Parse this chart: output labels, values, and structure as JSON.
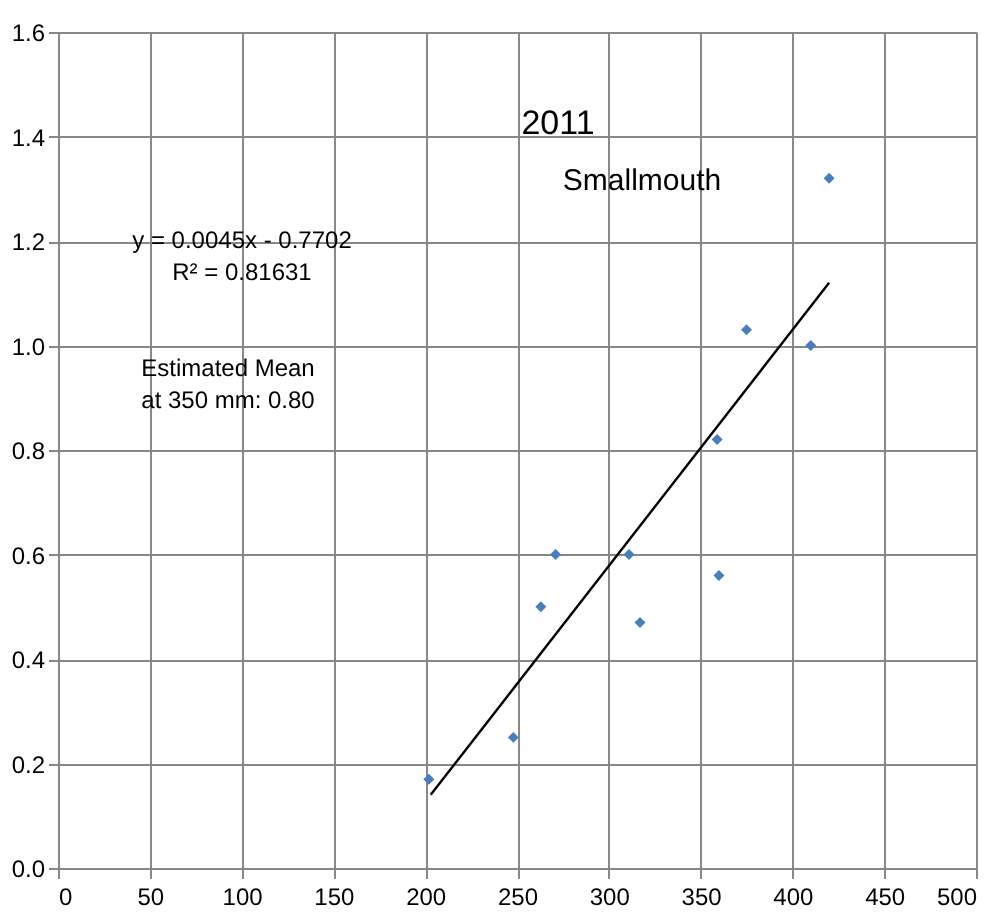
{
  "chart_data": {
    "type": "scatter",
    "title": "2011",
    "subtitle": "Smallmouth",
    "annotations": [
      "y = 0.0045x - 0.7702\nR² = 0.81631",
      "Estimated Mean\nat 350 mm: 0.80"
    ],
    "series": [
      {
        "type": "scatter",
        "color": "#4a7ebb",
        "marker": "diamond",
        "x": [
          202,
          248,
          263,
          271,
          311,
          317,
          359,
          360,
          375,
          410,
          420
        ],
        "values": [
          0.17,
          0.25,
          0.5,
          0.6,
          0.6,
          0.47,
          0.82,
          0.56,
          1.03,
          1.0,
          1.32
        ]
      },
      {
        "type": "line",
        "color": "#000000",
        "line_style": "solid",
        "x": [
          203,
          420
        ],
        "values": [
          0.14,
          1.12
        ]
      }
    ],
    "xlim": [
      0,
      500
    ],
    "xticks": [
      0,
      50,
      100,
      150,
      200,
      250,
      300,
      350,
      400,
      450,
      500
    ],
    "ylim": [
      0,
      1.6
    ],
    "yticks": [
      {
        "value": 0,
        "label": "0.0"
      },
      {
        "value": 0.2,
        "label": "0.2"
      },
      {
        "value": 0.4,
        "label": "0.4"
      },
      {
        "value": 0.6,
        "label": "0.6"
      },
      {
        "value": 0.8,
        "label": "0.8"
      },
      {
        "value": 1.0,
        "label": "1.0"
      },
      {
        "value": 1.2,
        "label": "1.2"
      },
      {
        "value": 1.4,
        "label": "1.4"
      },
      {
        "value": 1.6,
        "label": "1.6"
      }
    ],
    "grid": true
  }
}
